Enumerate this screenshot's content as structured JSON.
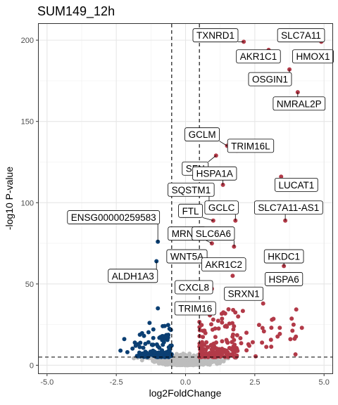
{
  "chart_data": {
    "type": "scatter",
    "title": "SUM149_12h",
    "xlabel": "log2FoldChange",
    "ylabel": "-log10 P-value",
    "xlim": [
      -5.3,
      5.3
    ],
    "ylim": [
      -5,
      210
    ],
    "x_ticks": [
      -5.0,
      -2.5,
      0.0,
      2.5,
      5.0
    ],
    "x_tick_labels": [
      "-5.0",
      "-2.5",
      "0.0",
      "2.5",
      "5.0"
    ],
    "y_ticks": [
      0,
      50,
      100,
      150,
      200
    ],
    "y_tick_labels": [
      "0",
      "50",
      "100",
      "150",
      "200"
    ],
    "grid": true,
    "fc_threshold": [
      -0.5,
      0.5
    ],
    "p_threshold": 5,
    "colors": {
      "up": "#b23a48",
      "down": "#0b3f73",
      "ns": "#bdbdbd"
    },
    "labeled_points": [
      {
        "gene": "TXNRD1",
        "x": 2.1,
        "y": 199,
        "lx": 1.08,
        "ly": 203
      },
      {
        "gene": "SLC7A11",
        "x": 4.9,
        "y": 199,
        "lx": 4.17,
        "ly": 203
      },
      {
        "gene": "AKR1C1",
        "x": 3.0,
        "y": 194,
        "lx": 2.63,
        "ly": 190
      },
      {
        "gene": "HMOX1",
        "x": 4.75,
        "y": 192,
        "lx": 4.6,
        "ly": 190
      },
      {
        "gene": "OSGIN1",
        "x": 3.75,
        "y": 182,
        "lx": 3.05,
        "ly": 176
      },
      {
        "gene": "NMRAL2P",
        "x": 4.05,
        "y": 168,
        "lx": 4.1,
        "ly": 161
      },
      {
        "gene": "GCLM",
        "x": 1.5,
        "y": 135,
        "lx": 0.6,
        "ly": 142
      },
      {
        "gene": "TRIM16L",
        "x": 1.85,
        "y": 132,
        "lx": 2.35,
        "ly": 135
      },
      {
        "gene": "SFN",
        "x": 1.1,
        "y": 129,
        "lx": 0.35,
        "ly": 121
      },
      {
        "gene": "HSPA1A",
        "x": 1.35,
        "y": 111,
        "lx": 1.05,
        "ly": 118
      },
      {
        "gene": "LUCAT1",
        "x": 3.45,
        "y": 116,
        "lx": 4.0,
        "ly": 111
      },
      {
        "gene": "SQSTM1",
        "x": 0.85,
        "y": 98,
        "lx": 0.2,
        "ly": 108
      },
      {
        "gene": "GCLC",
        "x": 1.8,
        "y": 89,
        "lx": 1.3,
        "ly": 97
      },
      {
        "gene": "SLC7A11-AS1",
        "x": 3.6,
        "y": 89,
        "lx": 3.72,
        "ly": 97
      },
      {
        "gene": "FTL",
        "x": 1.0,
        "y": 89,
        "lx": 0.18,
        "ly": 95
      },
      {
        "gene": "ENSG00000259583",
        "x": -1.0,
        "y": 76,
        "lx": -2.6,
        "ly": 91
      },
      {
        "gene": "MRNIP",
        "x": 0.95,
        "y": 75,
        "lx": 0.05,
        "ly": 81
      },
      {
        "gene": "SLC6A6",
        "x": 1.75,
        "y": 73,
        "lx": 1.0,
        "ly": 81
      },
      {
        "gene": "WNT5A",
        "x": 0.95,
        "y": 63,
        "lx": 0.05,
        "ly": 67
      },
      {
        "gene": "AKR1C2",
        "x": 1.1,
        "y": 60,
        "lx": 1.38,
        "ly": 62
      },
      {
        "gene": "HKDC1",
        "x": 3.55,
        "y": 61,
        "lx": 3.55,
        "ly": 67
      },
      {
        "gene": "ALDH1A3",
        "x": -1.05,
        "y": 64,
        "lx": -1.9,
        "ly": 55
      },
      {
        "gene": "HSPA6",
        "x": 3.6,
        "y": 52,
        "lx": 3.55,
        "ly": 53
      },
      {
        "gene": "CXCL8",
        "x": 0.95,
        "y": 47,
        "lx": 0.3,
        "ly": 48
      },
      {
        "gene": "SRXN1",
        "x": 1.6,
        "y": 45,
        "lx": 2.1,
        "ly": 44
      },
      {
        "gene": "TRIM16",
        "x": 0.75,
        "y": 38,
        "lx": 0.35,
        "ly": 35
      }
    ],
    "labeled_point_colors": {
      "ENSG00000259583": "down",
      "ALDH1A3": "down"
    }
  }
}
